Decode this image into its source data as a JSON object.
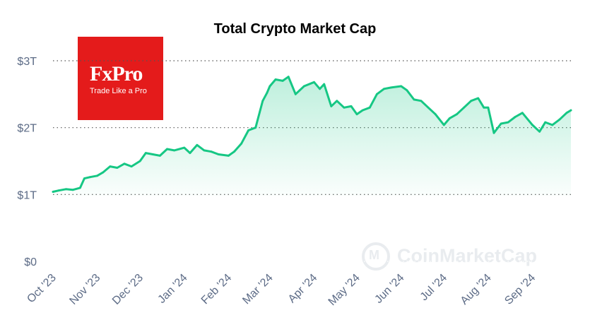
{
  "chart_data": {
    "type": "area",
    "title": "Total Crypto Market Cap",
    "xlabel": "",
    "ylabel": "",
    "ylim": [
      0,
      3
    ],
    "y_ticks": [
      "$0",
      "$1T",
      "$2T",
      "$3T"
    ],
    "x_ticks": [
      "Oct '23",
      "Nov '23",
      "Dec '23",
      "Jan '24",
      "Feb '24",
      "Mar '24",
      "Apr '24",
      "May '24",
      "Jun '24",
      "Jul '24",
      "Aug '24",
      "Sep '24"
    ],
    "grid": "horizontal dotted",
    "line_color": "#16c784",
    "x": [
      "2023-10-01",
      "2023-10-05",
      "2023-10-10",
      "2023-10-15",
      "2023-10-20",
      "2023-10-23",
      "2023-10-27",
      "2023-11-01",
      "2023-11-05",
      "2023-11-10",
      "2023-11-15",
      "2023-11-20",
      "2023-11-25",
      "2023-12-01",
      "2023-12-05",
      "2023-12-10",
      "2023-12-15",
      "2023-12-20",
      "2023-12-25",
      "2024-01-01",
      "2024-01-05",
      "2024-01-10",
      "2024-01-15",
      "2024-01-20",
      "2024-01-25",
      "2024-02-01",
      "2024-02-05",
      "2024-02-10",
      "2024-02-15",
      "2024-02-20",
      "2024-02-25",
      "2024-02-28",
      "2024-03-01",
      "2024-03-05",
      "2024-03-10",
      "2024-03-14",
      "2024-03-19",
      "2024-03-25",
      "2024-04-01",
      "2024-04-05",
      "2024-04-08",
      "2024-04-13",
      "2024-04-17",
      "2024-04-22",
      "2024-04-27",
      "2024-05-01",
      "2024-05-05",
      "2024-05-10",
      "2024-05-15",
      "2024-05-20",
      "2024-05-25",
      "2024-06-01",
      "2024-06-05",
      "2024-06-10",
      "2024-06-15",
      "2024-06-20",
      "2024-06-25",
      "2024-07-01",
      "2024-07-05",
      "2024-07-10",
      "2024-07-15",
      "2024-07-20",
      "2024-07-25",
      "2024-07-29",
      "2024-08-01",
      "2024-08-05",
      "2024-08-10",
      "2024-08-15",
      "2024-08-20",
      "2024-08-25",
      "2024-09-01",
      "2024-09-06",
      "2024-09-10",
      "2024-09-15",
      "2024-09-20",
      "2024-09-25",
      "2024-09-28"
    ],
    "values": [
      1.04,
      1.06,
      1.08,
      1.07,
      1.1,
      1.24,
      1.26,
      1.28,
      1.33,
      1.42,
      1.4,
      1.46,
      1.42,
      1.5,
      1.62,
      1.6,
      1.58,
      1.68,
      1.66,
      1.7,
      1.62,
      1.74,
      1.66,
      1.64,
      1.6,
      1.58,
      1.64,
      1.76,
      1.96,
      2.0,
      2.4,
      2.52,
      2.62,
      2.72,
      2.7,
      2.76,
      2.5,
      2.62,
      2.68,
      2.58,
      2.65,
      2.32,
      2.4,
      2.3,
      2.32,
      2.2,
      2.26,
      2.3,
      2.5,
      2.58,
      2.6,
      2.62,
      2.56,
      2.42,
      2.4,
      2.3,
      2.2,
      2.04,
      2.14,
      2.2,
      2.3,
      2.4,
      2.44,
      2.3,
      2.3,
      1.92,
      2.06,
      2.08,
      2.16,
      2.22,
      2.04,
      1.94,
      2.08,
      2.04,
      2.12,
      2.22,
      2.26
    ]
  }
}
